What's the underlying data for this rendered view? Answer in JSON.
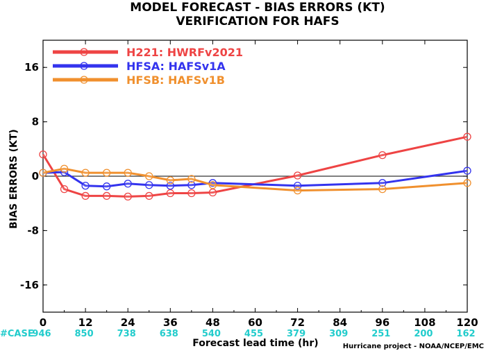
{
  "chart_data": {
    "type": "line",
    "title": "MODEL FORECAST - BIAS ERRORS (KT)",
    "subtitle": "VERIFICATION FOR HAFS",
    "xlabel": "Forecast lead time (hr)",
    "ylabel": "BIAS ERRORS (KT)",
    "xlim": [
      0,
      120
    ],
    "ylim": [
      -20,
      20
    ],
    "x_ticks": [
      0,
      12,
      24,
      36,
      48,
      60,
      72,
      84,
      96,
      108,
      120
    ],
    "y_ticks": [
      -16,
      -8,
      0,
      8,
      16
    ],
    "zero_line": true,
    "legend_position": "top-left",
    "series": [
      {
        "name": "H221: HWRFv2021",
        "color": "#ee4444",
        "x": [
          0,
          6,
          12,
          18,
          24,
          30,
          36,
          42,
          48,
          72,
          96,
          120
        ],
        "y": [
          3.2,
          -1.9,
          -2.9,
          -2.9,
          -3.0,
          -2.9,
          -2.5,
          -2.5,
          -2.4,
          0.1,
          3.1,
          5.8
        ]
      },
      {
        "name": "HFSA: HAFSv1A",
        "color": "#3333ee",
        "x": [
          0,
          6,
          12,
          18,
          24,
          30,
          36,
          42,
          48,
          72,
          96,
          120
        ],
        "y": [
          0.5,
          0.6,
          -1.4,
          -1.5,
          -1.1,
          -1.3,
          -1.4,
          -1.3,
          -1.0,
          -1.4,
          -1.0,
          0.8
        ]
      },
      {
        "name": "HFSB: HAFSv1B",
        "color": "#f0902e",
        "x": [
          0,
          6,
          12,
          18,
          24,
          30,
          36,
          42,
          48,
          72,
          96,
          120
        ],
        "y": [
          0.5,
          1.1,
          0.5,
          0.5,
          0.5,
          0.0,
          -0.6,
          -0.4,
          -1.3,
          -2.1,
          -1.9,
          -1.0
        ]
      }
    ],
    "case_counts": {
      "label": "#CASE",
      "color": "#22cccc",
      "x": [
        0,
        12,
        24,
        36,
        48,
        60,
        72,
        84,
        96,
        108,
        120
      ],
      "values": [
        "946",
        "850",
        "738",
        "638",
        "540",
        "455",
        "379",
        "309",
        "251",
        "200",
        "162"
      ]
    }
  },
  "credit": "Hurricane project - NOAA/NCEP/EMC"
}
